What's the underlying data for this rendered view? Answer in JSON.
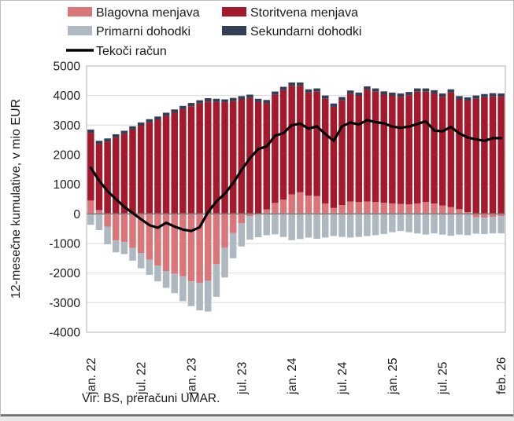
{
  "legend": {
    "items": [
      {
        "label": "Blagovna menjava",
        "color": "#D9767A",
        "type": "swatch"
      },
      {
        "label": "Storitvena menjava",
        "color": "#A21A2B",
        "type": "swatch"
      },
      {
        "label": "Primarni dohodki",
        "color": "#AEB8C1",
        "type": "swatch"
      },
      {
        "label": "Sekundarni dohodki",
        "color": "#333F54",
        "type": "swatch"
      },
      {
        "label": "Tekoči račun",
        "color": "#000000",
        "type": "line"
      }
    ]
  },
  "y_axis": {
    "label": "12-mesečne kumulative, v mio EUR",
    "max": 5000,
    "min": -4000,
    "tick_step": 1000,
    "ticks": [
      5000,
      4000,
      3000,
      2000,
      1000,
      0,
      -1000,
      -2000,
      -3000,
      -4000
    ]
  },
  "x_axis": {
    "tick_labels": [
      {
        "label": "jan. 22",
        "month_index": 0
      },
      {
        "label": "jul. 22",
        "month_index": 6
      },
      {
        "label": "jan. 23",
        "month_index": 12
      },
      {
        "label": "jul. 23",
        "month_index": 18
      },
      {
        "label": "jan. 24",
        "month_index": 24
      },
      {
        "label": "jul. 24",
        "month_index": 30
      },
      {
        "label": "jan. 25",
        "month_index": 36
      },
      {
        "label": "jul. 25",
        "month_index": 42
      },
      {
        "label": "feb. 26",
        "month_index": 49
      }
    ]
  },
  "source": "Vir: BS, preračuni UMAR.",
  "colors": {
    "grid": "#D9D9D9",
    "zero_line": "#808080",
    "plot_border": "#BFBFBF",
    "frame": "#BFBFBF",
    "bottom_rule": "#404040",
    "background": "#FFFFFF",
    "text": "#1a1a1a"
  },
  "chart_data": {
    "type": "bar",
    "subtype": "stacked-bars-with-line-overlay",
    "unit": "mio EUR",
    "title": "",
    "xlabel": "",
    "ylabel": "12-mesečne kumulative, v mio EUR",
    "ylim": [
      -4000,
      5000
    ],
    "grid": true,
    "legend_position": "top",
    "months_count": 50,
    "start_month": "jan. 22",
    "end_month": "feb. 26",
    "series": [
      {
        "name": "Blagovna menjava",
        "color": "#D9767A",
        "render": "bar",
        "values": [
          450,
          130,
          -430,
          -900,
          -950,
          -1150,
          -1320,
          -1550,
          -1750,
          -1930,
          -2020,
          -2110,
          -2280,
          -2330,
          -2260,
          -1700,
          -1150,
          -650,
          -320,
          -80,
          0,
          150,
          370,
          480,
          660,
          730,
          620,
          600,
          350,
          200,
          300,
          420,
          400,
          420,
          400,
          380,
          350,
          340,
          320,
          350,
          400,
          350,
          280,
          230,
          160,
          60,
          -115,
          -130,
          -100,
          -80
        ]
      },
      {
        "name": "Storitvena menjava",
        "color": "#A21A2B",
        "render": "bar",
        "values": [
          2290,
          2230,
          2440,
          2580,
          2700,
          2850,
          2980,
          3090,
          3180,
          3310,
          3420,
          3540,
          3640,
          3730,
          3800,
          3780,
          3760,
          3810,
          3870,
          3920,
          3780,
          3590,
          3655,
          3705,
          3670,
          3600,
          3480,
          3530,
          3540,
          3420,
          3540,
          3640,
          3590,
          3780,
          3730,
          3650,
          3640,
          3620,
          3690,
          3780,
          3730,
          3720,
          3680,
          3870,
          3710,
          3770,
          3890,
          3940,
          3970,
          3960
        ]
      },
      {
        "name": "Primarni dohodki",
        "color": "#AEB8C1",
        "render": "bar",
        "values": [
          -370,
          -550,
          -600,
          -400,
          -410,
          -430,
          -520,
          -510,
          -530,
          -570,
          -660,
          -840,
          -840,
          -930,
          -1040,
          -1100,
          -1000,
          -850,
          -780,
          -790,
          -790,
          -720,
          -690,
          -780,
          -890,
          -850,
          -800,
          -840,
          -800,
          -750,
          -780,
          -800,
          -780,
          -750,
          -720,
          -680,
          -620,
          -580,
          -620,
          -660,
          -700,
          -660,
          -700,
          -740,
          -700,
          -720,
          -555,
          -550,
          -560,
          -580
        ]
      },
      {
        "name": "Sekundarni dohodki",
        "color": "#333F54",
        "render": "bar",
        "values": [
          110,
          110,
          110,
          110,
          110,
          110,
          110,
          110,
          110,
          110,
          110,
          110,
          110,
          110,
          110,
          110,
          110,
          110,
          110,
          110,
          110,
          110,
          110,
          110,
          110,
          110,
          110,
          110,
          110,
          110,
          110,
          110,
          110,
          110,
          110,
          110,
          110,
          110,
          110,
          110,
          110,
          110,
          110,
          110,
          110,
          110,
          110,
          110,
          110,
          110
        ]
      },
      {
        "name": "Tekoči račun",
        "color": "#000000",
        "render": "line",
        "values": [
          1560,
          1120,
          770,
          500,
          240,
          30,
          -180,
          -380,
          -470,
          -300,
          -430,
          -530,
          -580,
          -450,
          60,
          420,
          680,
          1040,
          1480,
          1880,
          2190,
          2280,
          2640,
          2730,
          3000,
          3050,
          2880,
          2960,
          2700,
          2470,
          2960,
          3090,
          3020,
          3170,
          3100,
          3060,
          2950,
          2910,
          2950,
          3040,
          3130,
          2820,
          2790,
          2940,
          2720,
          2580,
          2520,
          2470,
          2560,
          2560
        ]
      }
    ]
  },
  "geometry_note": "plot area x 110-642, y 84-423, zero at y 272.3"
}
